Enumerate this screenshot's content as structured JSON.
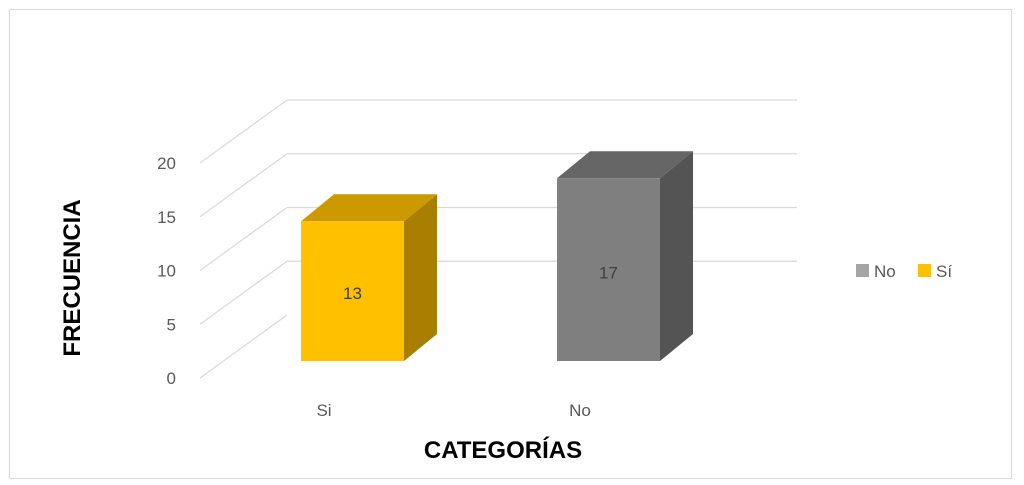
{
  "chart_data": {
    "type": "bar",
    "style": "3d-column",
    "categories": [
      "Si",
      "No"
    ],
    "values": [
      13,
      17
    ],
    "bar_colors": [
      "#FFC000",
      "#7F7F7F"
    ],
    "xlabel": "CATEGORÍAS",
    "ylabel": "FRECUENCIA",
    "ylim": [
      0,
      20
    ],
    "yticks": [
      0,
      5,
      10,
      15,
      20
    ],
    "grid": true,
    "data_labels": true,
    "legend": {
      "position": "right",
      "entries": [
        {
          "label": "No",
          "color": "#A5A5A5"
        },
        {
          "label": "Sí",
          "color": "#FFC000"
        }
      ]
    }
  }
}
